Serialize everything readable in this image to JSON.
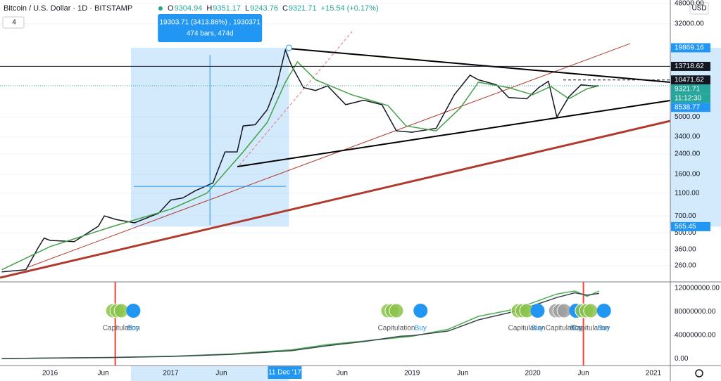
{
  "header": {
    "title": "Bitcoin / U.S. Dollar · 1D · BITSTAMP",
    "ohlc": [
      {
        "key": "O",
        "value": "9304.94"
      },
      {
        "key": "H",
        "value": "9351.17"
      },
      {
        "key": "L",
        "value": "9243.76"
      },
      {
        "key": "C",
        "value": "9321.71"
      }
    ],
    "change": "+15.54 (+0.17%)",
    "indicator_count": "4",
    "currency": "USD"
  },
  "chart_data": [
    {
      "type": "line",
      "log_scale": true,
      "grid": true,
      "xlim": [
        2015.585,
        2021.14
      ],
      "ylim": [
        191,
        51400
      ],
      "xticks": [
        2016,
        {
          "value": 2016.44,
          "label": "Jun"
        },
        2017,
        {
          "value": 2017.42,
          "label": "Jun"
        },
        {
          "value": 2018.42,
          "label": "Jun"
        },
        2019,
        {
          "value": 2019.42,
          "label": "Jun"
        },
        2020,
        {
          "value": 2020.42,
          "label": "Jun"
        },
        2021
      ],
      "yticks": [
        {
          "value": 48000,
          "label": "48000.00"
        },
        {
          "value": 32000,
          "label": "32000.00"
        },
        {
          "value": 5000,
          "label": "5000.00"
        },
        {
          "value": 3400,
          "label": "3400.00"
        },
        {
          "value": 2400,
          "label": "2400.00"
        },
        {
          "value": 1600,
          "label": "1600.00"
        },
        {
          "value": 1100,
          "label": "1100.00"
        },
        {
          "value": 700,
          "label": "700.00"
        },
        {
          "value": 500,
          "label": "500.00"
        },
        {
          "value": 360,
          "label": "360.00"
        },
        {
          "value": 260,
          "label": "260.00"
        }
      ],
      "series": [
        {
          "color": "#131722",
          "x": [
            2015.6,
            2015.8,
            2015.9,
            2015.95,
            2016.0,
            2016.2,
            2016.4,
            2016.45,
            2016.55,
            2016.7,
            2016.9,
            2017.0,
            2017.1,
            2017.2,
            2017.35,
            2017.45,
            2017.55,
            2017.6,
            2017.7,
            2017.8,
            2017.88,
            2017.95,
            2018.0,
            2018.1,
            2018.2,
            2018.3,
            2018.45,
            2018.6,
            2018.75,
            2018.87,
            2019.0,
            2019.2,
            2019.35,
            2019.48,
            2019.55,
            2019.7,
            2019.8,
            2019.95,
            2020.05,
            2020.13,
            2020.2,
            2020.3,
            2020.4,
            2020.5,
            2020.55
          ],
          "values": [
            230,
            240,
            370,
            450,
            430,
            420,
            570,
            700,
            650,
            610,
            740,
            960,
            1000,
            1150,
            1350,
            2500,
            2500,
            4200,
            4300,
            5800,
            9500,
            19000,
            14000,
            9000,
            8500,
            9300,
            6400,
            7000,
            6400,
            3800,
            3700,
            4000,
            7800,
            11500,
            10500,
            9500,
            7400,
            7200,
            9000,
            10200,
            5000,
            7500,
            9500,
            9300,
            9321.71
          ]
        },
        {
          "color": "#43a047",
          "x": [
            2015.6,
            2016.0,
            2016.5,
            2017.0,
            2017.3,
            2017.6,
            2017.8,
            2017.95,
            2018.05,
            2018.2,
            2018.5,
            2018.8,
            2018.95,
            2019.2,
            2019.4,
            2019.55,
            2019.8,
            2020.0,
            2020.15,
            2020.3,
            2020.45,
            2020.55
          ],
          "values": [
            240,
            380,
            560,
            800,
            1100,
            2500,
            4500,
            10000,
            15000,
            10500,
            7800,
            6300,
            4200,
            3800,
            6000,
            10000,
            9000,
            7800,
            9200,
            7200,
            8800,
            9300
          ]
        }
      ],
      "price_labels": [
        {
          "value": 19869.16,
          "color": "#2196f3",
          "line": "none"
        },
        {
          "value": 13718.62,
          "color": "#131722",
          "line": "solid"
        },
        {
          "value": 10471.62,
          "color": "#131722",
          "line": "dashed"
        },
        {
          "value": 9321.71,
          "color": "#26a69a",
          "line": "dotted"
        },
        {
          "value": 8538.77,
          "color": "#2196f3",
          "line": "none"
        },
        {
          "value": 565.45,
          "color": "#2196f3",
          "line": "none"
        }
      ],
      "countdown": "11:12:30",
      "crosshair": {
        "x": 2017.945,
        "label": "11 Dec '17"
      },
      "measure": {
        "x": [
          2016.67,
          2017.98
        ],
        "text": [
          "19303.71 (3413.86%) , 1930371",
          "474 bars, 474d"
        ]
      }
    },
    {
      "type": "line",
      "xlim": [
        2015.585,
        2021.14
      ],
      "ylim": [
        -11800000,
        129400000
      ],
      "yticks": [
        {
          "value": 120000000,
          "label": "120000000.00"
        },
        {
          "value": 80000000,
          "label": "80000000.00"
        },
        {
          "value": 40000000,
          "label": "40000000.00"
        },
        {
          "value": 0,
          "label": "0.00"
        }
      ],
      "series": [
        {
          "color": "#4caf50",
          "x": [
            2015.6,
            2016.0,
            2016.5,
            2017.0,
            2017.5,
            2018.0,
            2018.3,
            2018.6,
            2018.9,
            2019.0,
            2019.3,
            2019.55,
            2019.8,
            2020.0,
            2020.2,
            2020.35,
            2020.45,
            2020.55
          ],
          "values": [
            0,
            1000000,
            2000000,
            4000000,
            8000000,
            15000000,
            24000000,
            30000000,
            36000000,
            38000000,
            50000000,
            72000000,
            82000000,
            95000000,
            110000000,
            115000000,
            106000000,
            115000000
          ]
        },
        {
          "color": "#37474f",
          "x": [
            2015.6,
            2016.0,
            2016.5,
            2017.0,
            2017.5,
            2018.0,
            2018.3,
            2018.6,
            2018.9,
            2019.0,
            2019.3,
            2019.55,
            2019.8,
            2020.0,
            2020.2,
            2020.35,
            2020.45,
            2020.55
          ],
          "values": [
            0,
            900000,
            1800000,
            3600000,
            7200000,
            13500000,
            22000000,
            29000000,
            38000000,
            39000000,
            47000000,
            66000000,
            78000000,
            90000000,
            104000000,
            112000000,
            108000000,
            111000000
          ]
        }
      ],
      "vlines": [
        {
          "x": 2016.54,
          "color": "#f44336"
        },
        {
          "x": 2020.42,
          "color": "#f44336"
        }
      ],
      "annotations": [
        {
          "text": "Capitulation",
          "x": 2016.59,
          "color": "#555",
          "marker": "#8bc34a"
        },
        {
          "text": "Buy",
          "x": 2016.69,
          "color": "#2196f3",
          "marker": "#2196f3"
        },
        {
          "text": "Capitulation",
          "x": 2018.87,
          "color": "#555",
          "marker": "#8bc34a"
        },
        {
          "text": "Buy",
          "x": 2019.07,
          "color": "#2196f3",
          "marker": "#2196f3"
        },
        {
          "text": "Capitulation",
          "x": 2019.95,
          "color": "#555",
          "marker": "#8bc34a"
        },
        {
          "text": "Buy",
          "x": 2020.04,
          "color": "#2196f3",
          "marker": "#2196f3"
        },
        {
          "text": "Capitulation",
          "x": 2020.26,
          "color": "#555",
          "marker": "#9e9e9e"
        },
        {
          "text": "Buy",
          "x": 2020.36,
          "color": "#2196f3",
          "marker": "#2196f3"
        },
        {
          "text": "Capitulation",
          "x": 2020.48,
          "color": "#555",
          "marker": "#8bc34a"
        },
        {
          "text": "Buy",
          "x": 2020.59,
          "color": "#2196f3",
          "marker": "#2196f3"
        }
      ]
    }
  ]
}
